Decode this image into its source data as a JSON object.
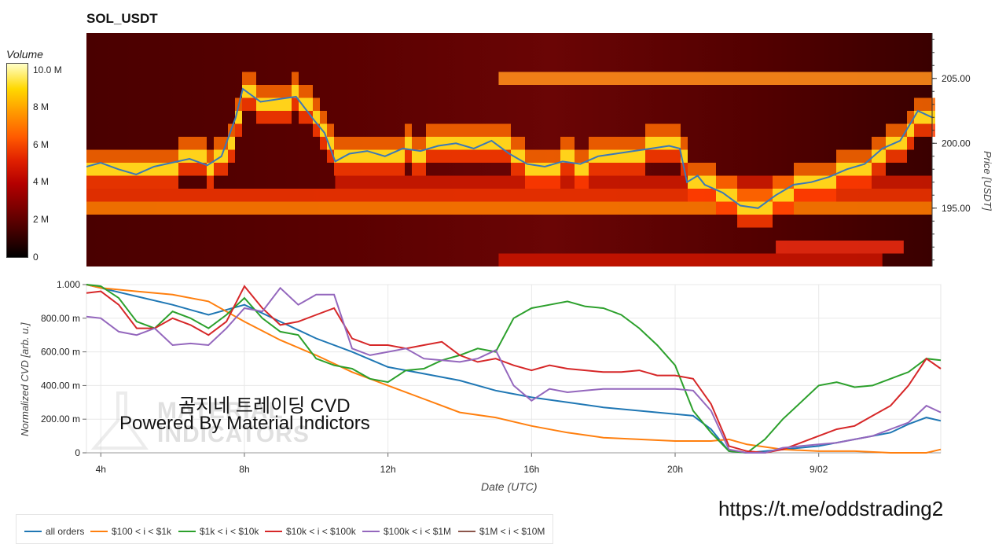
{
  "title": "SOL_USDT",
  "colorbar": {
    "title": "Volume",
    "ticks": [
      "10.0 M",
      "8 M",
      "6 M",
      "4 M",
      "2 M",
      "0"
    ]
  },
  "heatmap": {
    "ylabel": "Price [USDT]",
    "price_ticks": [
      "205.00",
      "200.00",
      "195.00"
    ]
  },
  "cvd": {
    "ylabel": "Normalized CVD [arb. u.]",
    "y_ticks": [
      "1.000",
      "800.00 m",
      "600.00 m",
      "400.00 m",
      "200.00 m",
      "0"
    ],
    "x_ticks": [
      "4h",
      "8h",
      "12h",
      "16h",
      "20h",
      "9/02"
    ],
    "xlabel": "Date (UTC)"
  },
  "watermark": {
    "line1": "곰지네 트레이딩 CVD",
    "line2": "Powered By Material Indictors",
    "logo_text_1": "MATERIAL",
    "logo_text_2": "INDICATORS"
  },
  "telegram_link": "https://t.me/oddstrading2",
  "colors": {
    "all_orders": "#1f77b4",
    "s100_1k": "#ff7f0e",
    "s1k_10k": "#2ca02c",
    "s10k_100k": "#d62728",
    "s100k_1m": "#9467bd",
    "s1m_10m": "#8c564b"
  },
  "chart_data": [
    {
      "type": "heatmap",
      "title": "SOL_USDT",
      "ylabel": "Price [USDT]",
      "ylim": [
        190.5,
        208.5
      ],
      "x_hours": [
        3.6,
        27.4
      ],
      "price_series": {
        "x": [
          3.6,
          4.0,
          4.5,
          5.0,
          5.5,
          6.0,
          6.5,
          7.0,
          7.4,
          7.8,
          8.0,
          8.5,
          9.0,
          9.5,
          10.0,
          10.3,
          10.6,
          11.0,
          11.5,
          12.0,
          12.5,
          13.0,
          13.5,
          14.0,
          14.5,
          15.0,
          15.5,
          16.0,
          16.5,
          17.0,
          17.5,
          18.0,
          18.5,
          19.0,
          19.5,
          20.0,
          20.3,
          20.5,
          20.8,
          21.0,
          21.5,
          22.0,
          22.5,
          23.0,
          23.5,
          24.0,
          24.5,
          25.0,
          25.5,
          26.0,
          26.5,
          27.0,
          27.4
        ],
        "y": [
          198.2,
          198.5,
          198.0,
          197.6,
          198.2,
          198.5,
          198.8,
          198.3,
          199.0,
          202.0,
          204.2,
          203.2,
          203.4,
          203.6,
          201.8,
          200.8,
          198.6,
          199.2,
          199.4,
          199.0,
          199.6,
          199.4,
          199.8,
          200.0,
          199.6,
          200.2,
          199.2,
          198.4,
          198.2,
          198.6,
          198.4,
          199.0,
          199.2,
          199.4,
          199.6,
          199.8,
          199.6,
          197.0,
          197.5,
          196.8,
          196.2,
          195.2,
          195.0,
          196.0,
          196.8,
          197.0,
          197.4,
          198.0,
          198.4,
          199.6,
          200.2,
          202.5,
          202.0
        ]
      },
      "high_volume_levels": [
        {
          "price": 205.0,
          "from_hour": 15.2,
          "to_hour": 27.4
        },
        {
          "price": 195.0,
          "from_hour": 3.6,
          "to_hour": 27.4
        },
        {
          "price": 196.0,
          "from_hour": 3.6,
          "to_hour": 27.4
        },
        {
          "price": 197.0,
          "from_hour": 10.6,
          "to_hour": 27.4
        },
        {
          "price": 192.0,
          "from_hour": 23.0,
          "to_hour": 26.6
        },
        {
          "price": 191.0,
          "from_hour": 15.2,
          "to_hour": 26.0
        }
      ]
    },
    {
      "type": "line",
      "title": "",
      "xlabel": "Date (UTC)",
      "ylabel": "Normalized CVD [arb. u.]",
      "xlim": [
        3.6,
        27.4
      ],
      "ylim": [
        0,
        1.0
      ],
      "x_tick_labels": [
        "4h",
        "8h",
        "12h",
        "16h",
        "20h",
        "9/02"
      ],
      "grid": true,
      "legend": "bottom",
      "series": [
        {
          "name": "all orders",
          "x": [
            3.6,
            4.0,
            5.0,
            6.0,
            7.0,
            8.0,
            9.0,
            10.0,
            11.0,
            12.0,
            13.0,
            14.0,
            15.0,
            16.0,
            17.0,
            18.0,
            19.0,
            20.0,
            20.5,
            21.0,
            21.5,
            22.0,
            23.0,
            24.0,
            25.0,
            26.0,
            26.5,
            27.0,
            27.4
          ],
          "y": [
            1.0,
            0.98,
            0.93,
            0.88,
            0.82,
            0.88,
            0.78,
            0.68,
            0.6,
            0.51,
            0.47,
            0.43,
            0.37,
            0.33,
            0.3,
            0.27,
            0.25,
            0.23,
            0.22,
            0.14,
            0.01,
            0.0,
            0.02,
            0.04,
            0.08,
            0.12,
            0.17,
            0.21,
            0.19
          ]
        },
        {
          "name": "$100 < i < $1k",
          "x": [
            3.6,
            4.0,
            5.0,
            6.0,
            7.0,
            8.0,
            9.0,
            10.0,
            11.0,
            12.0,
            13.0,
            14.0,
            15.0,
            16.0,
            17.0,
            18.0,
            19.0,
            20.0,
            21.0,
            21.5,
            22.0,
            23.0,
            24.0,
            25.0,
            26.0,
            27.0,
            27.4
          ],
          "y": [
            1.0,
            0.98,
            0.96,
            0.94,
            0.9,
            0.78,
            0.67,
            0.58,
            0.48,
            0.4,
            0.32,
            0.24,
            0.21,
            0.16,
            0.12,
            0.09,
            0.08,
            0.07,
            0.07,
            0.08,
            0.05,
            0.02,
            0.01,
            0.01,
            0.0,
            0.0,
            0.02
          ]
        },
        {
          "name": "$1k < i < $10k",
          "x": [
            3.6,
            4.0,
            4.5,
            5.0,
            5.5,
            6.0,
            6.5,
            7.0,
            7.5,
            8.0,
            8.5,
            9.0,
            9.5,
            10.0,
            10.5,
            11.0,
            11.5,
            12.0,
            12.5,
            13.0,
            13.5,
            14.0,
            14.5,
            15.0,
            15.5,
            16.0,
            16.5,
            17.0,
            17.5,
            18.0,
            18.5,
            19.0,
            19.5,
            20.0,
            20.5,
            21.0,
            21.5,
            22.0,
            22.5,
            23.0,
            23.5,
            24.0,
            24.5,
            25.0,
            25.5,
            26.0,
            26.5,
            27.0,
            27.4
          ],
          "y": [
            1.0,
            0.99,
            0.92,
            0.78,
            0.74,
            0.84,
            0.8,
            0.74,
            0.82,
            0.92,
            0.8,
            0.72,
            0.7,
            0.56,
            0.52,
            0.5,
            0.44,
            0.42,
            0.49,
            0.5,
            0.55,
            0.58,
            0.62,
            0.6,
            0.8,
            0.86,
            0.88,
            0.9,
            0.87,
            0.86,
            0.82,
            0.74,
            0.64,
            0.52,
            0.25,
            0.12,
            0.01,
            0.0,
            0.08,
            0.2,
            0.3,
            0.4,
            0.42,
            0.39,
            0.4,
            0.44,
            0.48,
            0.56,
            0.55
          ]
        },
        {
          "name": "$10k < i < $100k",
          "x": [
            3.6,
            4.0,
            4.5,
            5.0,
            5.5,
            6.0,
            6.5,
            7.0,
            7.5,
            8.0,
            8.5,
            9.0,
            9.5,
            10.0,
            10.5,
            11.0,
            11.5,
            12.0,
            12.5,
            13.0,
            13.5,
            14.0,
            14.5,
            15.0,
            15.5,
            16.0,
            16.5,
            17.0,
            17.5,
            18.0,
            18.5,
            19.0,
            19.5,
            20.0,
            20.5,
            21.0,
            21.5,
            22.0,
            22.5,
            23.0,
            23.5,
            24.0,
            24.5,
            25.0,
            25.5,
            26.0,
            26.5,
            27.0,
            27.4
          ],
          "y": [
            0.95,
            0.96,
            0.88,
            0.74,
            0.74,
            0.8,
            0.76,
            0.7,
            0.78,
            0.99,
            0.86,
            0.76,
            0.78,
            0.82,
            0.86,
            0.68,
            0.64,
            0.64,
            0.62,
            0.64,
            0.66,
            0.58,
            0.54,
            0.56,
            0.52,
            0.49,
            0.52,
            0.5,
            0.49,
            0.48,
            0.48,
            0.49,
            0.46,
            0.46,
            0.44,
            0.29,
            0.04,
            0.01,
            0.0,
            0.02,
            0.06,
            0.1,
            0.14,
            0.16,
            0.22,
            0.28,
            0.4,
            0.56,
            0.5
          ]
        },
        {
          "name": "$100k < i < $1M",
          "x": [
            3.6,
            4.0,
            4.5,
            5.0,
            5.5,
            6.0,
            6.5,
            7.0,
            7.5,
            8.0,
            8.5,
            9.0,
            9.5,
            10.0,
            10.5,
            11.0,
            11.5,
            12.0,
            12.5,
            13.0,
            13.5,
            14.0,
            14.5,
            15.0,
            15.5,
            16.0,
            16.5,
            17.0,
            17.5,
            18.0,
            18.5,
            19.0,
            19.5,
            20.0,
            20.5,
            21.0,
            21.5,
            22.0,
            22.5,
            23.0,
            23.5,
            24.0,
            24.5,
            25.0,
            25.5,
            26.0,
            26.5,
            27.0,
            27.4
          ],
          "y": [
            0.81,
            0.8,
            0.72,
            0.7,
            0.74,
            0.64,
            0.65,
            0.64,
            0.74,
            0.86,
            0.84,
            0.98,
            0.88,
            0.94,
            0.94,
            0.62,
            0.58,
            0.6,
            0.62,
            0.56,
            0.55,
            0.54,
            0.56,
            0.61,
            0.4,
            0.31,
            0.38,
            0.36,
            0.37,
            0.38,
            0.38,
            0.38,
            0.38,
            0.38,
            0.37,
            0.25,
            0.02,
            0.0,
            0.0,
            0.03,
            0.04,
            0.05,
            0.06,
            0.08,
            0.1,
            0.14,
            0.18,
            0.28,
            0.24
          ]
        },
        {
          "name": "$1M < i < $10M",
          "x": [],
          "y": []
        }
      ]
    }
  ]
}
